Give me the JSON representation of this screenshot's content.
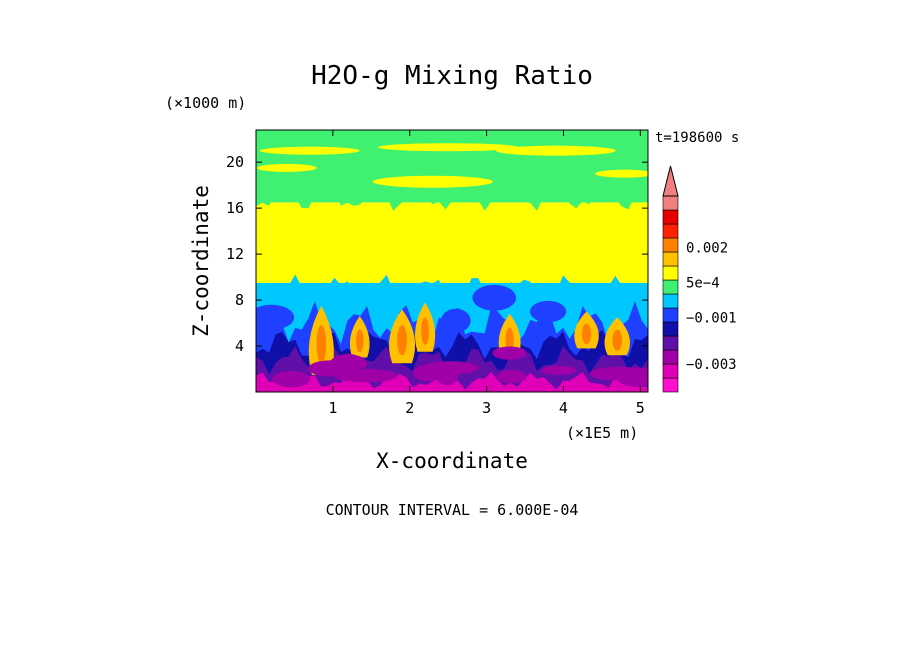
{
  "chart_data": {
    "type": "heatmap",
    "title": "H2O-g Mixing Ratio",
    "xlabel": "X-coordinate",
    "ylabel": "Z-coordinate",
    "x_unit": "(×1E5 m)",
    "y_unit": "(×1000 m)",
    "time_label": "t=198600 s",
    "contour_interval_text": "CONTOUR INTERVAL = 6.000E-04",
    "xlim": [
      0,
      5.1
    ],
    "ylim": [
      0,
      22.8
    ],
    "x_ticks": [
      {
        "value": 1,
        "label": "1"
      },
      {
        "value": 2,
        "label": "2"
      },
      {
        "value": 3,
        "label": "3"
      },
      {
        "value": 4,
        "label": "4"
      },
      {
        "value": 5,
        "label": "5"
      }
    ],
    "y_ticks": [
      {
        "value": 4,
        "label": "4"
      },
      {
        "value": 8,
        "label": "8"
      },
      {
        "value": 12,
        "label": "12"
      },
      {
        "value": 16,
        "label": "16"
      },
      {
        "value": 20,
        "label": "20"
      }
    ],
    "colorbar": {
      "min": -0.0042,
      "max": 0.0036,
      "levels": [
        -0.0042,
        -0.0036,
        -0.003,
        -0.0024,
        -0.0018,
        -0.0012,
        -0.0006,
        0.0,
        0.0006,
        0.0012,
        0.0018,
        0.0024,
        0.003,
        0.0036
      ],
      "colors": [
        "#ff10d0",
        "#e000b8",
        "#a000a8",
        "#6010a8",
        "#1010a8",
        "#2040ff",
        "#00c8ff",
        "#40f070",
        "#ffff00",
        "#ffc000",
        "#ff8000",
        "#ff2000",
        "#e80000",
        "#f08080"
      ],
      "labels": [
        {
          "value": 0.002,
          "text": "0.002"
        },
        {
          "value": 0.0005,
          "text": "5e−4"
        },
        {
          "value": -0.001,
          "text": "−0.001"
        },
        {
          "value": -0.003,
          "text": "−0.003"
        }
      ]
    },
    "field_bands": [
      {
        "z": [
          0,
          1.5
        ],
        "level": "-0.0036"
      },
      {
        "z": [
          1.5,
          4
        ],
        "level": "-0.0024"
      },
      {
        "z": [
          4,
          6
        ],
        "level": "-0.0012"
      },
      {
        "z": [
          6,
          9.5
        ],
        "level": "-0.0006"
      },
      {
        "z": [
          9.5,
          16.5
        ],
        "level": "0.0006"
      },
      {
        "z": [
          16.5,
          22.8
        ],
        "level": "0.0"
      }
    ]
  }
}
